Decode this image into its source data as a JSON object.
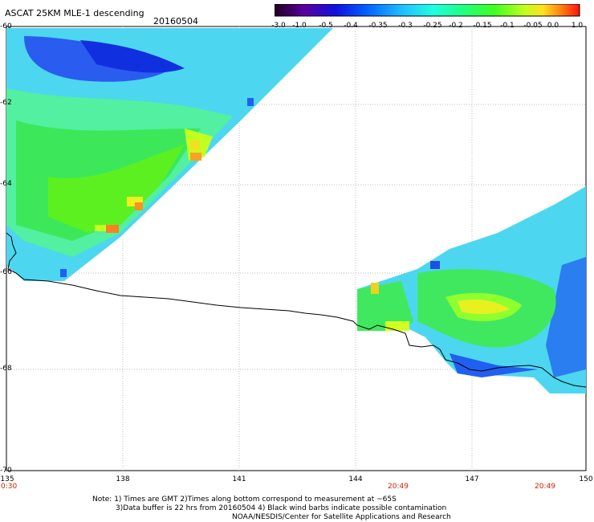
{
  "header": {
    "title": "ASCAT 25KM MLE-1 descending",
    "date": "20160504"
  },
  "colorbar": {
    "labels": [
      "-3.0",
      "-1.0",
      "-0.5",
      "-0.4",
      "-0.35",
      "-0.3",
      "-0.25",
      "-0.2",
      "-0.15",
      "-0.1",
      "-0.05",
      "0.0",
      "1.0"
    ],
    "colors": [
      "#300030",
      "#5a00a0",
      "#1a10e0",
      "#0050ff",
      "#1a8cff",
      "#1ad6ff",
      "#1affe0",
      "#1aff80",
      "#40ff1a",
      "#a0ff1a",
      "#f0ff1a",
      "#ff9010",
      "#ff2010"
    ]
  },
  "axes": {
    "lat_labels": [
      "-60",
      "-62",
      "-64",
      "-66",
      "-68",
      "-70"
    ],
    "lon_labels": [
      "135",
      "138",
      "141",
      "144",
      "147",
      "150"
    ],
    "time_labels": [
      "0:30",
      "20:49",
      "20:49"
    ]
  },
  "notes": {
    "line1": "Note: 1) Times are GMT 2)Times along bottom correspond to measurement at ~65S",
    "line2": "3)Data buffer is 22 hrs from 20160504 4) Black wind barbs indicate possible contamination",
    "line3": "NOAA/NESDIS/Center for Satellite Applications and Research"
  }
}
